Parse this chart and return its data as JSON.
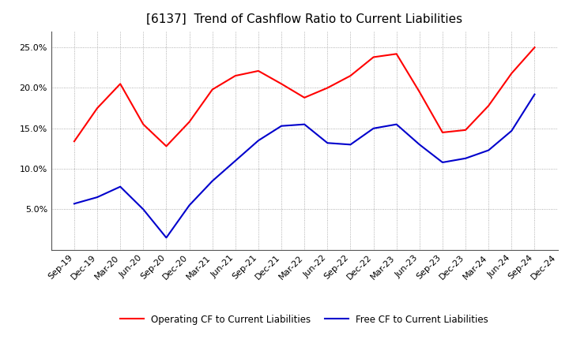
{
  "title": "[6137]  Trend of Cashflow Ratio to Current Liabilities",
  "x_labels": [
    "Sep-19",
    "Dec-19",
    "Mar-20",
    "Jun-20",
    "Sep-20",
    "Dec-20",
    "Mar-21",
    "Jun-21",
    "Sep-21",
    "Dec-21",
    "Mar-22",
    "Jun-22",
    "Sep-22",
    "Dec-22",
    "Mar-23",
    "Jun-23",
    "Sep-23",
    "Dec-23",
    "Mar-24",
    "Jun-24",
    "Sep-24",
    "Dec-24"
  ],
  "operating_cf": [
    0.134,
    0.175,
    0.205,
    0.155,
    0.128,
    0.158,
    0.198,
    0.215,
    0.221,
    0.205,
    0.188,
    0.2,
    0.215,
    0.238,
    0.242,
    0.195,
    0.145,
    0.148,
    0.178,
    0.218,
    0.25,
    null
  ],
  "free_cf": [
    0.057,
    0.065,
    0.078,
    0.05,
    0.015,
    0.055,
    0.085,
    0.11,
    0.135,
    0.153,
    0.155,
    0.132,
    0.13,
    0.15,
    0.155,
    0.13,
    0.108,
    0.113,
    0.123,
    0.147,
    0.192,
    null
  ],
  "operating_color": "#FF0000",
  "free_color": "#0000CC",
  "ylim": [
    0.0,
    0.27
  ],
  "yticks": [
    0.05,
    0.1,
    0.15,
    0.2,
    0.25
  ],
  "background_color": "#FFFFFF",
  "grid_color": "#999999",
  "legend_op": "Operating CF to Current Liabilities",
  "legend_free": "Free CF to Current Liabilities",
  "title_fontsize": 11,
  "axis_fontsize": 8
}
